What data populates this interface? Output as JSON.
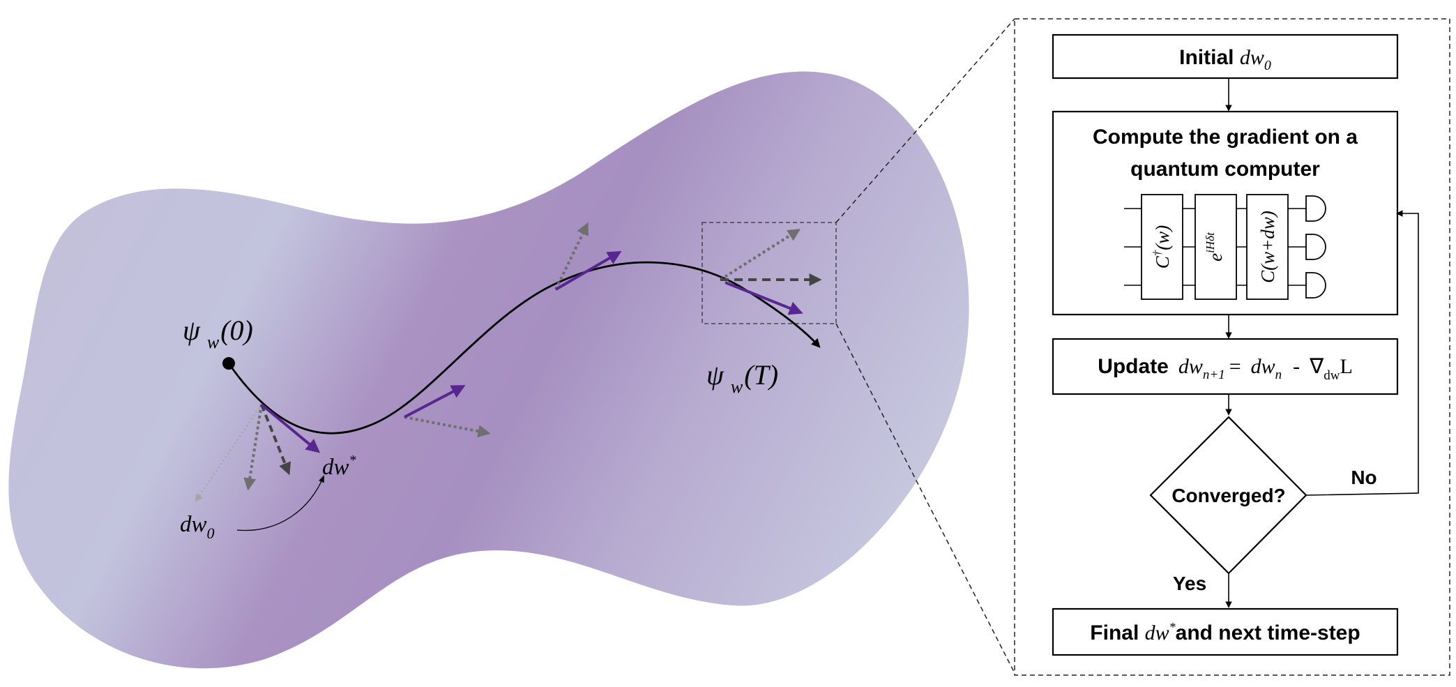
{
  "manifold": {
    "start_label": {
      "symbol": "ψ",
      "sub": "w",
      "arg": "(0)"
    },
    "end_label": {
      "symbol": "ψ",
      "sub": "w",
      "arg": "(T)"
    },
    "initial_label": {
      "base": "dw",
      "sub": "0"
    },
    "optimal_label": {
      "base": "dw",
      "sup": "*"
    },
    "colors": {
      "surface_light": "#c8c9df",
      "surface_dark": "#a68fc1",
      "gradient_arrow": "#58268f",
      "candidate_arrow": "#6f6f6f"
    }
  },
  "flowchart": {
    "initial": {
      "text": "Initial ",
      "var": "dw",
      "sub": "0"
    },
    "compute": {
      "line1": "Compute the gradient on a",
      "line2": "quantum computer"
    },
    "circuit": {
      "gate1": {
        "base": "C",
        "sup": "†",
        "arg": "(w)"
      },
      "gate2": {
        "base": "e",
        "sup": "iHδt"
      },
      "gate3": {
        "text": "C(w+dw)"
      }
    },
    "update": {
      "text": "Update",
      "lhs": {
        "var": "dw",
        "sub": "n+1"
      },
      "eq": "=",
      "rhs": {
        "var": "dw",
        "sub": "n"
      },
      "minus": "-",
      "grad": {
        "symbol": "∇",
        "sub": "dw",
        "fn": "L"
      }
    },
    "decision": "Converged?",
    "no_label": "No",
    "yes_label": "Yes",
    "final": {
      "text1": "Final ",
      "var": "dw",
      "sup": "*",
      "text2": "and next time-step"
    }
  }
}
